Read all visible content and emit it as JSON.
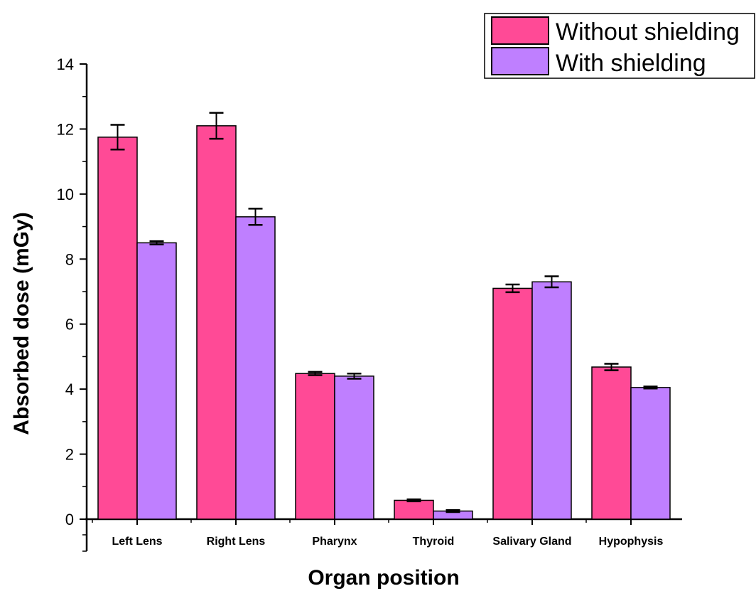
{
  "chart_data": {
    "type": "bar",
    "xlabel": "Organ position",
    "ylabel": "Absorbed dose (mGy)",
    "ylim": [
      0,
      14
    ],
    "yticks": [
      0,
      2,
      4,
      6,
      8,
      10,
      12,
      14
    ],
    "categories": [
      "Left Lens",
      "Right Lens",
      "Pharynx",
      "Thyroid",
      "Salivary Gland",
      "Hypophysis"
    ],
    "series": [
      {
        "name": "Without shielding",
        "color": "#ff4a96",
        "values": [
          11.75,
          12.1,
          4.48,
          0.58,
          7.1,
          4.68
        ],
        "errors": [
          0.38,
          0.4,
          0.05,
          0.03,
          0.12,
          0.1
        ]
      },
      {
        "name": "With shielding",
        "color": "#bf7fff",
        "values": [
          8.5,
          9.3,
          4.4,
          0.25,
          7.3,
          4.05
        ],
        "errors": [
          0.05,
          0.25,
          0.08,
          0.03,
          0.17,
          0.03
        ]
      }
    ],
    "legend_position": "top-right",
    "grid": false
  }
}
